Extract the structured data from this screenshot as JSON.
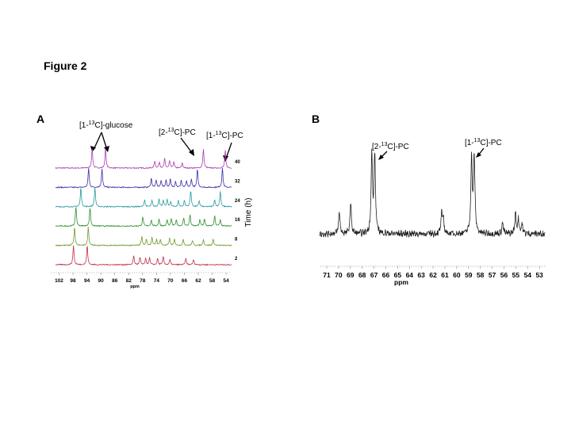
{
  "figure_title": "Figure 2",
  "panel_a": {
    "letter": "A",
    "labels": {
      "glucose": [
        "[1-",
        "13",
        "C]-glucose"
      ],
      "pc2": [
        "[2-",
        "13",
        "C]-PC"
      ],
      "pc1": [
        "[1-",
        "13",
        "C]-PC"
      ]
    },
    "time_axis_label": "Time (h)"
  },
  "panel_b": {
    "letter": "B",
    "labels": {
      "pc2": [
        "[2-",
        "13",
        "C]-PC"
      ],
      "pc1": [
        "[1-",
        "13",
        "C]-PC"
      ]
    }
  },
  "chart_data": [
    {
      "type": "line",
      "panel": "A",
      "description_hidden": false,
      "xlabel": "ppm",
      "x_ticks": [
        "102",
        "98",
        "94",
        "90",
        "86",
        "82",
        "78",
        "74",
        "70",
        "66",
        "62",
        "58",
        "54"
      ],
      "xlim": [
        103,
        53
      ],
      "axis_reversed": true,
      "stack_labels": [
        "40",
        "32",
        "24",
        "16",
        "8",
        "2"
      ],
      "series": [
        {
          "name": "40",
          "color": "#b03cb0",
          "peaks": [
            [
              92.6,
              1.0
            ],
            [
              88.8,
              0.95
            ],
            [
              74.8,
              0.35
            ],
            [
              73.5,
              0.3
            ],
            [
              72.0,
              0.45
            ],
            [
              70.6,
              0.35
            ],
            [
              69.4,
              0.3
            ],
            [
              67.0,
              0.25
            ],
            [
              61.0,
              0.95
            ],
            [
              54.8,
              0.85
            ]
          ]
        },
        {
          "name": "32",
          "color": "#3a2fa8",
          "peaks": [
            [
              93.6,
              0.95
            ],
            [
              89.8,
              0.9
            ],
            [
              75.8,
              0.45
            ],
            [
              74.4,
              0.35
            ],
            [
              73.0,
              0.35
            ],
            [
              71.6,
              0.35
            ],
            [
              70.4,
              0.4
            ],
            [
              68.9,
              0.3
            ],
            [
              67.3,
              0.35
            ],
            [
              65.8,
              0.3
            ],
            [
              64.4,
              0.4
            ],
            [
              62.7,
              0.9
            ],
            [
              55.6,
              0.95
            ]
          ]
        },
        {
          "name": "24",
          "color": "#2a9aa0",
          "peaks": [
            [
              95.8,
              0.95
            ],
            [
              91.8,
              0.95
            ],
            [
              77.7,
              0.35
            ],
            [
              75.6,
              0.3
            ],
            [
              73.6,
              0.4
            ],
            [
              72.4,
              0.3
            ],
            [
              71.3,
              0.35
            ],
            [
              70.3,
              0.25
            ],
            [
              68.1,
              0.3
            ],
            [
              66.4,
              0.3
            ],
            [
              64.6,
              0.8
            ],
            [
              62.2,
              0.3
            ],
            [
              57.8,
              0.35
            ],
            [
              56.2,
              0.75
            ]
          ]
        },
        {
          "name": "16",
          "color": "#2f8e2f",
          "peaks": [
            [
              97.2,
              0.95
            ],
            [
              93.2,
              0.9
            ],
            [
              78.2,
              0.45
            ],
            [
              75.8,
              0.3
            ],
            [
              73.6,
              0.35
            ],
            [
              71.3,
              0.3
            ],
            [
              70.1,
              0.35
            ],
            [
              68.7,
              0.3
            ],
            [
              66.6,
              0.4
            ],
            [
              64.8,
              0.55
            ],
            [
              62.0,
              0.3
            ],
            [
              60.7,
              0.35
            ],
            [
              57.8,
              0.5
            ],
            [
              56.2,
              0.3
            ]
          ]
        },
        {
          "name": "8",
          "color": "#6f9c2a",
          "peaks": [
            [
              97.6,
              0.9
            ],
            [
              93.7,
              0.9
            ],
            [
              78.5,
              0.45
            ],
            [
              77.2,
              0.3
            ],
            [
              75.6,
              0.4
            ],
            [
              74.3,
              0.3
            ],
            [
              73.2,
              0.3
            ],
            [
              70.6,
              0.35
            ],
            [
              69.2,
              0.3
            ],
            [
              66.7,
              0.3
            ],
            [
              64.1,
              0.25
            ],
            [
              61.0,
              0.3
            ],
            [
              58.2,
              0.3
            ]
          ]
        },
        {
          "name": "2",
          "color": "#c0304a",
          "peaks": [
            [
              97.9,
              0.95
            ],
            [
              94.0,
              0.95
            ],
            [
              80.8,
              0.45
            ],
            [
              79.0,
              0.35
            ],
            [
              77.4,
              0.3
            ],
            [
              76.3,
              0.35
            ],
            [
              74.0,
              0.3
            ],
            [
              72.4,
              0.4
            ],
            [
              70.5,
              0.25
            ],
            [
              66.0,
              0.3
            ],
            [
              63.8,
              0.25
            ]
          ]
        }
      ]
    },
    {
      "type": "line",
      "panel": "B",
      "xlabel": "ppm",
      "x_ticks": [
        "71",
        "70",
        "69",
        "68",
        "67",
        "66",
        "65",
        "64",
        "63",
        "62",
        "61",
        "60",
        "59",
        "58",
        "57",
        "56",
        "55",
        "54",
        "53"
      ],
      "xlim": [
        71.7,
        52.5
      ],
      "axis_reversed": true,
      "series": [
        {
          "color": "#222222",
          "peaks": [
            [
              70.02,
              0.27
            ],
            [
              69.05,
              0.37
            ],
            [
              67.25,
              0.99
            ],
            [
              67.0,
              0.99
            ],
            [
              61.3,
              0.24
            ],
            [
              61.15,
              0.18
            ],
            [
              58.75,
              0.96
            ],
            [
              58.52,
              0.96
            ],
            [
              56.1,
              0.14
            ],
            [
              55.0,
              0.25
            ],
            [
              54.75,
              0.18
            ],
            [
              54.45,
              0.12
            ]
          ]
        }
      ]
    }
  ]
}
